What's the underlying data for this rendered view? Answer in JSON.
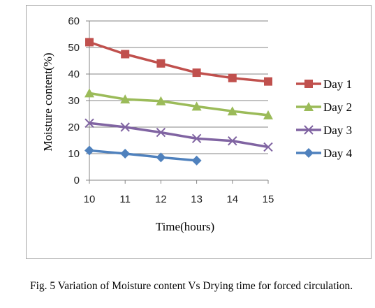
{
  "caption": "Fig. 5 Variation of Moisture content Vs Drying time for forced circulation.",
  "chart_data": {
    "type": "line",
    "title": "",
    "xlabel": "Time(hours)",
    "ylabel": "Moisture content(%)",
    "x": [
      10,
      11,
      12,
      13,
      14,
      15
    ],
    "xlim": [
      10,
      15
    ],
    "ylim": [
      0,
      60
    ],
    "yticks": [
      0,
      10,
      20,
      30,
      40,
      50,
      60
    ],
    "grid": true,
    "legend_position": "right",
    "series": [
      {
        "name": "Day 1",
        "values": [
          52,
          47.5,
          44,
          40.5,
          38.5,
          37.2
        ],
        "color": "#c0504d",
        "marker": "square"
      },
      {
        "name": "Day 2",
        "values": [
          32.8,
          30.5,
          29.8,
          27.8,
          26,
          24.5
        ],
        "color": "#9bbb59",
        "marker": "triangle"
      },
      {
        "name": "Day 3",
        "values": [
          21.5,
          20,
          18,
          15.7,
          14.8,
          12.5
        ],
        "color": "#8064a2",
        "marker": "x"
      },
      {
        "name": "Day 4",
        "values": [
          11.2,
          10,
          8.6,
          7.4,
          null,
          null
        ],
        "color": "#4f81bd",
        "marker": "diamond"
      }
    ]
  }
}
